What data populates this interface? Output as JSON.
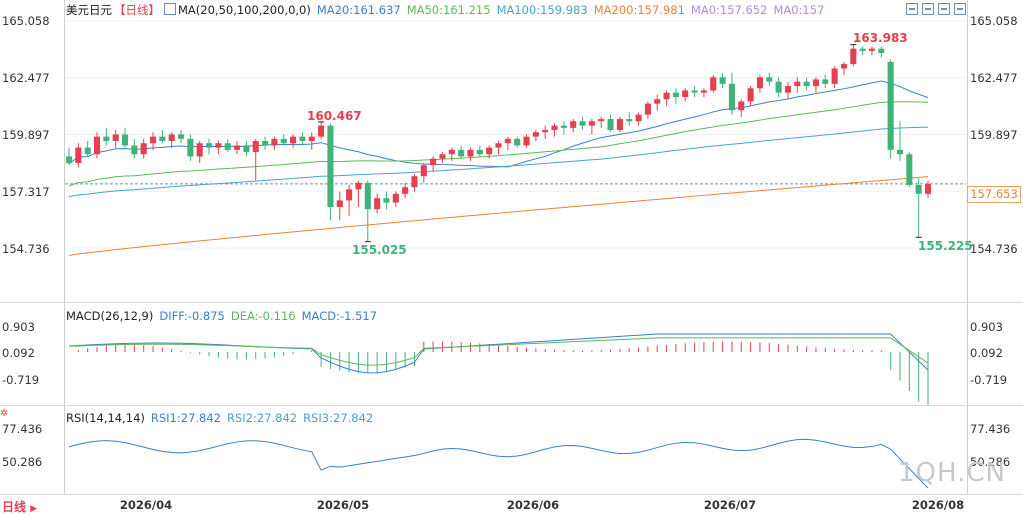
{
  "header": {
    "symbol": "美元日元",
    "period": "【日线】",
    "ma_label": "MA(20,50,100,200,0,0)",
    "ma20": "MA20:161.637",
    "ma50": "MA50:161.215",
    "ma100": "MA100:159.983",
    "ma200": "MA200:157.981",
    "ma0a": "MA0:157.652",
    "ma0b": "MA0:157"
  },
  "toolbar": [
    "zoom-icon",
    "shrink-icon",
    "restore-icon",
    "close-icon"
  ],
  "price_axis": {
    "ticks": [
      "165.058",
      "162.477",
      "159.897",
      "157.317",
      "154.736"
    ],
    "current_price": "157.653"
  },
  "annotations": {
    "high1": "160.467",
    "low1": "155.025",
    "high2": "163.983",
    "low2": "155.225"
  },
  "macd": {
    "label": "MACD(26,12,9)",
    "diff": "DIFF:-0.875",
    "dea": "DEA:-0.116",
    "macd": "MACD:-1.517",
    "ticks": [
      "0.903",
      "0.092",
      "-0.719"
    ]
  },
  "rsi": {
    "label": "RSI(14,14,14)",
    "rsi1": "RSI1:27.842",
    "rsi2": "RSI2:27.842",
    "rsi3": "RSI3:27.842",
    "ticks": [
      "77.436",
      "50.286"
    ]
  },
  "x_axis": [
    "2026/04",
    "2026/05",
    "2026/06",
    "2026/07",
    "2026/08"
  ],
  "footer": {
    "period_tab": "日线"
  },
  "watermark": "1QH.CN",
  "colors": {
    "up": "#e4404f",
    "down": "#40b27a",
    "ma20": "#3a7fd0",
    "ma50": "#5cb85c",
    "ma100": "#4aa3c8",
    "ma200": "#f08030",
    "diff": "#3a7fd0",
    "dea": "#5cb85c"
  },
  "chart_data": {
    "type": "candlestick",
    "x_range": [
      "2026/03/18",
      "2026/08/07"
    ],
    "ylim": [
      154.2,
      165.4
    ],
    "candles_ohlc": [
      [
        158.9,
        159.3,
        158.5,
        158.6
      ],
      [
        158.6,
        159.5,
        158.4,
        159.3
      ],
      [
        159.3,
        159.6,
        158.9,
        159.0
      ],
      [
        159.0,
        160.0,
        158.8,
        159.8
      ],
      [
        159.8,
        160.2,
        159.4,
        159.6
      ],
      [
        159.6,
        160.1,
        159.3,
        159.9
      ],
      [
        159.9,
        160.2,
        159.3,
        159.4
      ],
      [
        159.4,
        159.7,
        158.8,
        159.0
      ],
      [
        159.0,
        159.7,
        158.8,
        159.5
      ],
      [
        159.5,
        160.0,
        159.2,
        159.8
      ],
      [
        159.8,
        160.1,
        159.5,
        159.6
      ],
      [
        159.6,
        160.0,
        159.3,
        159.9
      ],
      [
        159.9,
        160.1,
        159.5,
        159.7
      ],
      [
        159.7,
        159.9,
        158.7,
        158.9
      ],
      [
        158.9,
        159.6,
        158.6,
        159.5
      ],
      [
        159.5,
        159.7,
        159.0,
        159.3
      ],
      [
        159.3,
        159.6,
        159.0,
        159.5
      ],
      [
        159.5,
        159.7,
        159.1,
        159.2
      ],
      [
        159.2,
        159.6,
        159.0,
        159.4
      ],
      [
        159.4,
        159.6,
        158.9,
        159.1
      ],
      [
        159.1,
        159.7,
        157.8,
        159.6
      ],
      [
        159.6,
        159.8,
        159.2,
        159.4
      ],
      [
        159.4,
        159.8,
        159.2,
        159.7
      ],
      [
        159.7,
        159.9,
        159.4,
        159.5
      ],
      [
        159.5,
        159.9,
        159.3,
        159.8
      ],
      [
        159.8,
        160.0,
        159.4,
        159.6
      ],
      [
        159.6,
        160.0,
        159.2,
        159.8
      ],
      [
        159.8,
        160.467,
        159.7,
        160.3
      ],
      [
        160.3,
        160.4,
        156.0,
        156.6
      ],
      [
        156.6,
        157.3,
        156.0,
        156.9
      ],
      [
        156.9,
        157.6,
        156.2,
        157.4
      ],
      [
        157.4,
        157.8,
        156.6,
        157.7
      ],
      [
        157.7,
        157.8,
        155.025,
        156.5
      ],
      [
        156.5,
        157.2,
        156.3,
        157.0
      ],
      [
        157.0,
        157.3,
        156.5,
        156.8
      ],
      [
        156.8,
        157.3,
        156.6,
        157.2
      ],
      [
        157.2,
        157.7,
        157.0,
        157.5
      ],
      [
        157.5,
        158.1,
        157.3,
        158.0
      ],
      [
        158.0,
        158.6,
        157.7,
        158.5
      ],
      [
        158.5,
        158.9,
        158.2,
        158.8
      ],
      [
        158.8,
        159.1,
        158.6,
        159.0
      ],
      [
        159.0,
        159.3,
        158.7,
        159.2
      ],
      [
        159.2,
        159.4,
        158.8,
        158.9
      ],
      [
        158.9,
        159.3,
        158.7,
        159.2
      ],
      [
        159.2,
        159.4,
        158.9,
        159.0
      ],
      [
        159.0,
        159.4,
        158.8,
        159.3
      ],
      [
        159.3,
        159.6,
        159.0,
        159.5
      ],
      [
        159.5,
        159.8,
        159.2,
        159.7
      ],
      [
        159.7,
        159.8,
        159.3,
        159.4
      ],
      [
        159.4,
        159.9,
        159.3,
        159.8
      ],
      [
        159.8,
        160.1,
        159.6,
        160.0
      ],
      [
        160.0,
        160.3,
        159.7,
        160.1
      ],
      [
        160.1,
        160.4,
        159.8,
        160.3
      ],
      [
        160.3,
        160.5,
        159.9,
        160.2
      ],
      [
        160.2,
        160.6,
        160.0,
        160.5
      ],
      [
        160.5,
        160.7,
        160.1,
        160.3
      ],
      [
        160.3,
        160.6,
        159.9,
        160.5
      ],
      [
        160.5,
        160.7,
        160.2,
        160.6
      ],
      [
        160.6,
        160.8,
        160.0,
        160.1
      ],
      [
        160.1,
        160.7,
        160.0,
        160.6
      ],
      [
        160.6,
        160.9,
        160.3,
        160.5
      ],
      [
        160.5,
        160.9,
        160.3,
        160.8
      ],
      [
        160.8,
        161.4,
        160.6,
        161.3
      ],
      [
        161.3,
        161.7,
        161.0,
        161.5
      ],
      [
        161.5,
        161.9,
        161.2,
        161.8
      ],
      [
        161.8,
        162.0,
        161.3,
        161.6
      ],
      [
        161.6,
        162.0,
        161.4,
        161.9
      ],
      [
        161.9,
        162.1,
        161.6,
        161.8
      ],
      [
        161.8,
        162.0,
        161.6,
        161.9
      ],
      [
        161.9,
        162.6,
        161.8,
        162.5
      ],
      [
        162.5,
        162.7,
        162.0,
        162.2
      ],
      [
        162.2,
        162.7,
        160.8,
        161.0
      ],
      [
        161.0,
        161.5,
        160.7,
        161.4
      ],
      [
        161.4,
        162.1,
        161.2,
        162.0
      ],
      [
        162.0,
        162.6,
        161.8,
        162.5
      ],
      [
        162.5,
        162.7,
        162.1,
        162.3
      ],
      [
        162.3,
        162.5,
        161.6,
        161.8
      ],
      [
        161.8,
        162.3,
        161.5,
        162.1
      ],
      [
        162.1,
        162.5,
        161.8,
        162.3
      ],
      [
        162.3,
        162.5,
        161.9,
        162.1
      ],
      [
        162.1,
        162.5,
        161.8,
        162.4
      ],
      [
        162.4,
        162.6,
        162.0,
        162.2
      ],
      [
        162.2,
        163.0,
        162.0,
        162.9
      ],
      [
        162.9,
        163.2,
        162.6,
        163.1
      ],
      [
        163.1,
        163.983,
        163.0,
        163.8
      ],
      [
        163.8,
        163.9,
        163.5,
        163.7
      ],
      [
        163.7,
        163.9,
        163.5,
        163.8
      ],
      [
        163.8,
        163.9,
        163.4,
        163.6
      ],
      [
        163.2,
        163.3,
        158.8,
        159.2
      ],
      [
        159.2,
        160.5,
        158.7,
        159.0
      ],
      [
        159.0,
        159.1,
        157.5,
        157.6
      ],
      [
        157.6,
        157.9,
        155.225,
        157.2
      ],
      [
        157.2,
        157.8,
        157.0,
        157.653
      ]
    ],
    "series": [
      {
        "name": "MA20",
        "values_start": 158.4,
        "values_end": 161.637
      },
      {
        "name": "MA50",
        "values_start": 157.0,
        "values_end": 161.215
      },
      {
        "name": "MA100",
        "values_start": 156.8,
        "values_end": 159.983
      },
      {
        "name": "MA200",
        "values_start": 154.4,
        "values_end": 157.981
      }
    ],
    "ref_line": 157.653
  }
}
